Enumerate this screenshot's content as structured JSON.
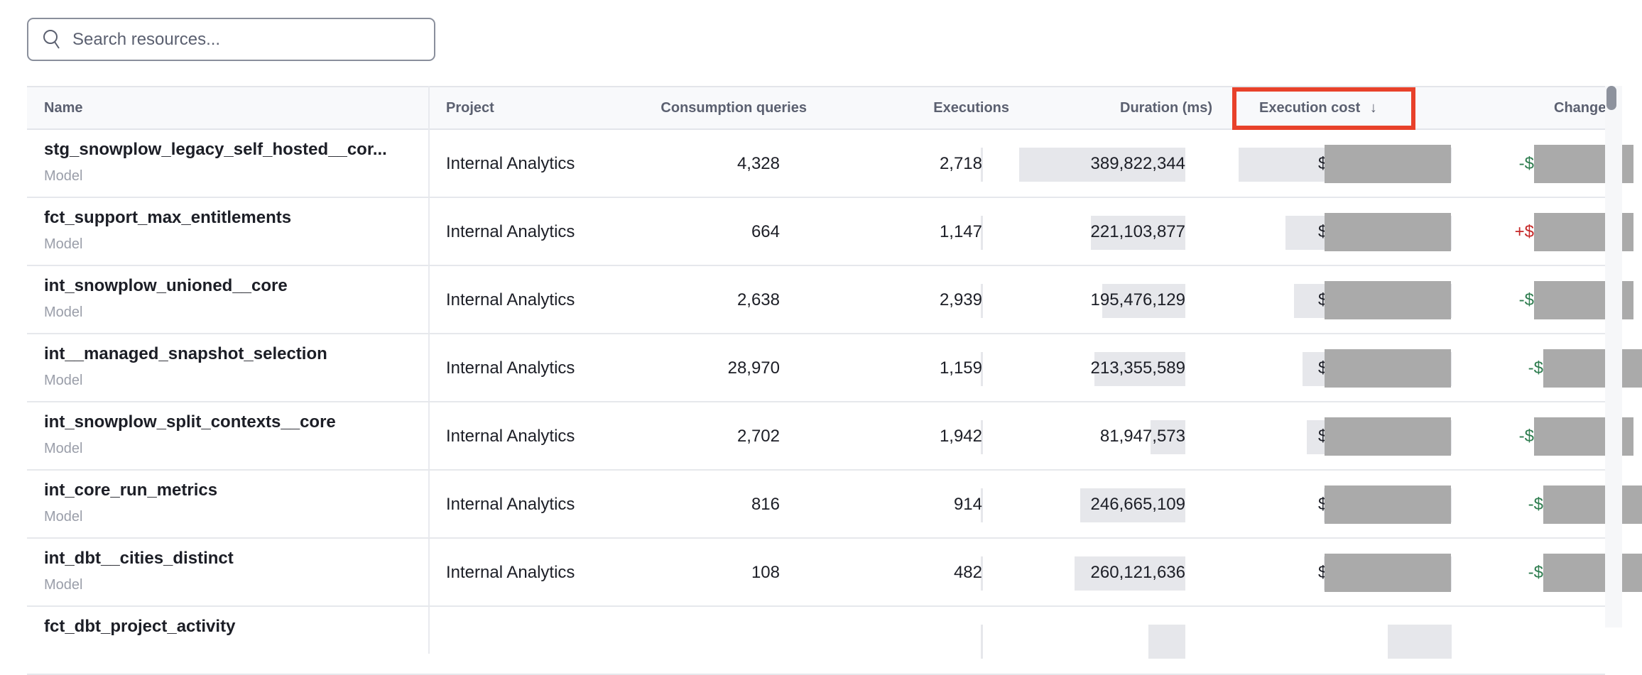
{
  "search": {
    "placeholder": "Search resources...",
    "icon": "search-icon"
  },
  "columns": {
    "name": "Name",
    "project": "Project",
    "consumption": "Consumption queries",
    "executions": "Executions",
    "duration": "Duration (ms)",
    "cost": "Execution cost",
    "cost_sort": "↓",
    "change": "Change"
  },
  "colors": {
    "highlight": "#e8412a",
    "negative_change": "#2e7d4f",
    "positive_change": "#c62828",
    "redaction": "#aaaaaa"
  },
  "rows": [
    {
      "name": "stg_snowplow_legacy_self_hosted__cor...",
      "type": "Model",
      "project": "Internal Analytics",
      "consumption": "4,328",
      "executions": "2,718",
      "duration": "389,822,344",
      "duration_value": 389822344,
      "cost_prefix": "$",
      "cost_bar": 1.0,
      "change_sign": "-$",
      "change_dir": "down"
    },
    {
      "name": "fct_support_max_entitlements",
      "type": "Model",
      "project": "Internal Analytics",
      "consumption": "664",
      "executions": "1,147",
      "duration": "221,103,877",
      "duration_value": 221103877,
      "cost_prefix": "$",
      "cost_bar": 0.78,
      "change_sign": "+$",
      "change_dir": "up"
    },
    {
      "name": "int_snowplow_unioned__core",
      "type": "Model",
      "project": "Internal Analytics",
      "consumption": "2,638",
      "executions": "2,939",
      "duration": "195,476,129",
      "duration_value": 195476129,
      "cost_prefix": "$",
      "cost_bar": 0.74,
      "change_sign": "-$",
      "change_dir": "down"
    },
    {
      "name": "int__managed_snapshot_selection",
      "type": "Model",
      "project": "Internal Analytics",
      "consumption": "28,970",
      "executions": "1,159",
      "duration": "213,355,589",
      "duration_value": 213355589,
      "cost_prefix": "$",
      "cost_bar": 0.7,
      "change_sign": "-$",
      "change_dir": "down"
    },
    {
      "name": "int_snowplow_split_contexts__core",
      "type": "Model",
      "project": "Internal Analytics",
      "consumption": "2,702",
      "executions": "1,942",
      "duration": "81,947,573",
      "duration_value": 81947573,
      "cost_prefix": "$",
      "cost_bar": 0.68,
      "change_sign": "-$",
      "change_dir": "down"
    },
    {
      "name": "int_core_run_metrics",
      "type": "Model",
      "project": "Internal Analytics",
      "consumption": "816",
      "executions": "914",
      "duration": "246,665,109",
      "duration_value": 246665109,
      "cost_prefix": "$",
      "cost_bar": 0.6,
      "change_sign": "-$",
      "change_dir": "down"
    },
    {
      "name": "int_dbt__cities_distinct",
      "type": "Model",
      "project": "Internal Analytics",
      "consumption": "108",
      "executions": "482",
      "duration": "260,121,636",
      "duration_value": 260121636,
      "cost_prefix": "$",
      "cost_bar": 0.6,
      "change_sign": "-$",
      "change_dir": "down"
    },
    {
      "name": "fct_dbt_project_activity",
      "partial": true,
      "duration_value": 86000000,
      "cost_bar": 0.3
    }
  ]
}
